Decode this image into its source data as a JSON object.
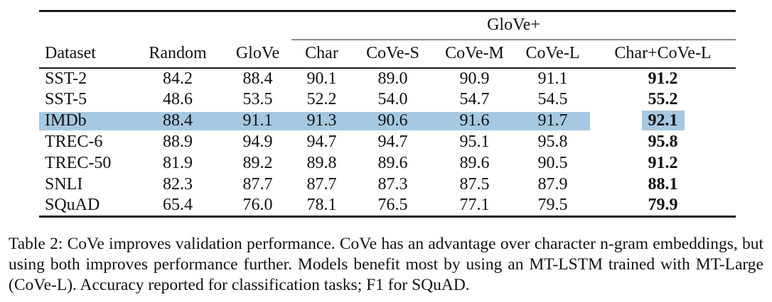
{
  "table": {
    "group_header": "GloVe+",
    "columns": [
      "Dataset",
      "Random",
      "GloVe",
      "Char",
      "CoVe-S",
      "CoVe-M",
      "CoVe-L",
      "Char+CoVe-L"
    ],
    "rows": [
      {
        "cells": [
          "SST-2",
          "84.2",
          "88.4",
          "90.1",
          "89.0",
          "90.9",
          "91.1",
          "91.2"
        ],
        "highlighted": false
      },
      {
        "cells": [
          "SST-5",
          "48.6",
          "53.5",
          "52.2",
          "54.0",
          "54.7",
          "54.5",
          "55.2"
        ],
        "highlighted": false
      },
      {
        "cells": [
          "IMDb",
          "88.4",
          "91.1",
          "91.3",
          "90.6",
          "91.6",
          "91.7",
          "92.1"
        ],
        "highlighted": true
      },
      {
        "cells": [
          "TREC-6",
          "88.9",
          "94.9",
          "94.7",
          "94.7",
          "95.1",
          "95.8",
          "95.8"
        ],
        "highlighted": false
      },
      {
        "cells": [
          "TREC-50",
          "81.9",
          "89.2",
          "89.8",
          "89.6",
          "89.6",
          "90.5",
          "91.2"
        ],
        "highlighted": false
      },
      {
        "cells": [
          "SNLI",
          "82.3",
          "87.7",
          "87.7",
          "87.3",
          "87.5",
          "87.9",
          "88.1"
        ],
        "highlighted": false
      },
      {
        "cells": [
          "SQuAD",
          "65.4",
          "76.0",
          "78.1",
          "76.5",
          "77.1",
          "79.5",
          "79.9"
        ],
        "highlighted": false
      }
    ]
  },
  "caption": "Table 2: CoVe improves validation performance. CoVe has an advantage over character n-gram embeddings, but using both improves performance further. Models benefit most by using an MT-LSTM trained with MT-Large (CoVe-L). Accuracy reported for classification tasks; F1 for SQuAD.",
  "colors": {
    "row_highlight": "#a6c8e0",
    "rule_dark": "#1a1a1a",
    "rule_gray": "#8a8a8a"
  }
}
